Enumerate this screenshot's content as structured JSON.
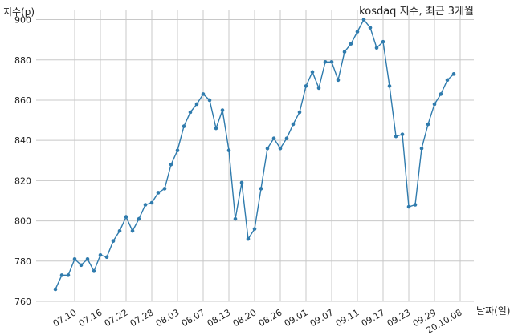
{
  "chart_data": {
    "type": "line",
    "title": "kosdaq 지수, 최근 3개월",
    "ylabel": "지수(p)",
    "xlabel": "날짜(일)",
    "ylim": [
      760,
      905
    ],
    "yticks": [
      760,
      780,
      800,
      820,
      840,
      860,
      880,
      900
    ],
    "grid": true,
    "line_color": "#2f7bad",
    "x_tick_labels": [
      "07.10",
      "07.16",
      "07.22",
      "07.28",
      "08.03",
      "08.07",
      "08.13",
      "08.20",
      "08.26",
      "09.01",
      "09.07",
      "09.11",
      "09.17",
      "09.23",
      "09.29",
      "20.10.08"
    ],
    "x_tick_indices": [
      3,
      7,
      11,
      15,
      19,
      23,
      27,
      31,
      35,
      39,
      43,
      47,
      51,
      55,
      59,
      63
    ],
    "series": [
      {
        "values": [
          766,
          773,
          773,
          781,
          778,
          781,
          775,
          783,
          782,
          790,
          795,
          802,
          795,
          801,
          808,
          809,
          814,
          816,
          828,
          835,
          847,
          854,
          858,
          863,
          860,
          846,
          855,
          835,
          801,
          819,
          791,
          796,
          816,
          836,
          841,
          836,
          841,
          848,
          854,
          867,
          874,
          866,
          879,
          879,
          870,
          884,
          888,
          894,
          900,
          896,
          886,
          889,
          867,
          842,
          843,
          807,
          808,
          836,
          848,
          858,
          863,
          870,
          873
        ]
      }
    ]
  }
}
